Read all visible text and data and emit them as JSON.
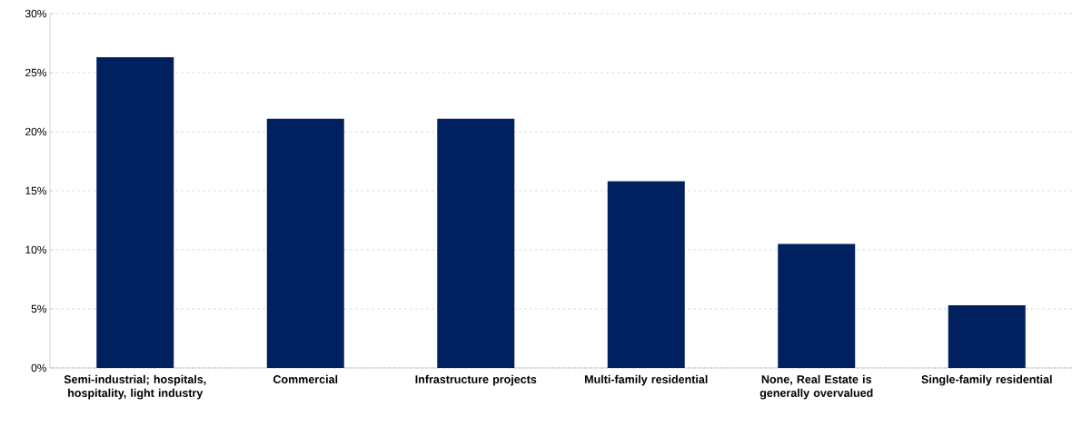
{
  "chart_data": {
    "type": "bar",
    "categories": [
      "Semi-industrial; hospitals, hospitality, light industry",
      "Commercial",
      "Infrastructure projects",
      "Multi-family residential",
      "None, Real Estate is generally overvalued",
      "Single-family residential"
    ],
    "values": [
      26.3,
      21.1,
      21.1,
      15.8,
      10.5,
      5.3
    ],
    "color": "#002060",
    "ylim": [
      0,
      30
    ],
    "yticks": [
      {
        "value": 0,
        "label": "0%"
      },
      {
        "value": 5,
        "label": "5%"
      },
      {
        "value": 10,
        "label": "10%"
      },
      {
        "value": 15,
        "label": "15%"
      },
      {
        "value": 20,
        "label": "20%"
      },
      {
        "value": 25,
        "label": "25%"
      },
      {
        "value": 30,
        "label": "30%"
      }
    ],
    "grid": "y"
  }
}
